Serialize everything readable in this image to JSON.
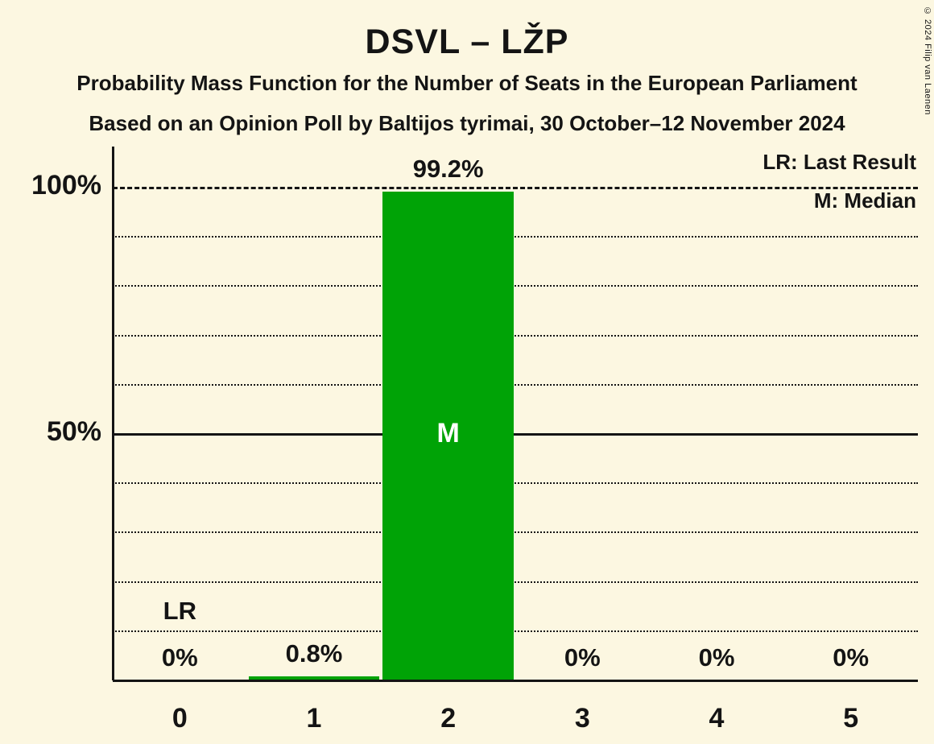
{
  "title": "DSVL – LŽP",
  "subtitle1": "Probability Mass Function for the Number of Seats in the European Parliament",
  "subtitle2": "Based on an Opinion Poll by Baltijos tyrimai, 30 October–12 November 2024",
  "copyright": "© 2024 Filip van Laenen",
  "legend": {
    "lr": "LR: Last Result",
    "m": "M: Median"
  },
  "colors": {
    "background": "#FCF7E1",
    "bar": "#00A306",
    "text": "#141414",
    "bar_label_inside": "#FFFFFF"
  },
  "chart_data": {
    "type": "bar",
    "title": "DSVL – LŽP",
    "xlabel": "",
    "ylabel": "",
    "categories": [
      "0",
      "1",
      "2",
      "3",
      "4",
      "5"
    ],
    "values": [
      0,
      0.8,
      99.2,
      0,
      0,
      0
    ],
    "value_labels": [
      "0%",
      "0.8%",
      "99.2%",
      "0%",
      "0%",
      "0%"
    ],
    "median_index": 2,
    "median_marker": "M",
    "last_result_index": 0,
    "last_result_marker": "LR",
    "ylim": [
      0,
      100
    ],
    "yticks": [
      {
        "value": 50,
        "label": "50%"
      },
      {
        "value": 100,
        "label": "100%"
      }
    ],
    "grid_minor_step": 10,
    "grid": "horizontal dotted, solid at 50%, dashed at 100%",
    "legend_position": "top-right"
  }
}
